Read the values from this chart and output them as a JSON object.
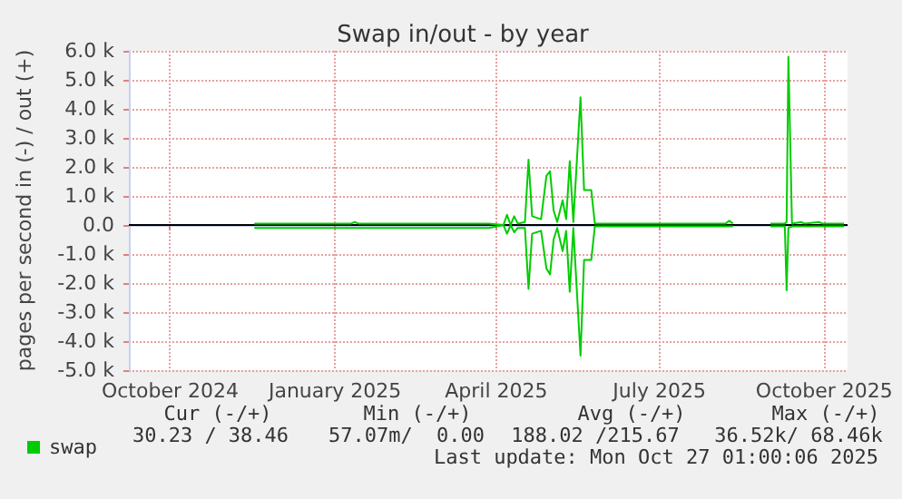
{
  "chart_data": {
    "type": "line",
    "title": "Swap in/out - by year",
    "ylabel": "pages per second in (-) / out (+)",
    "xlim": [
      "2024-09-08",
      "2025-10-14"
    ],
    "xticks": [
      {
        "value": "2024-10-01",
        "label": "October 2024"
      },
      {
        "value": "2025-01-01",
        "label": "January 2025"
      },
      {
        "value": "2025-04-01",
        "label": "April 2025"
      },
      {
        "value": "2025-07-01",
        "label": "July 2025"
      },
      {
        "value": "2025-10-01",
        "label": "October 2025"
      }
    ],
    "ylim": [
      -5000,
      6000
    ],
    "yticks": [
      {
        "value": -5000,
        "label": "-5.0 k"
      },
      {
        "value": -4000,
        "label": "-4.0 k"
      },
      {
        "value": -3000,
        "label": "-3.0 k"
      },
      {
        "value": -2000,
        "label": "-2.0 k"
      },
      {
        "value": -1000,
        "label": "-1.0 k"
      },
      {
        "value": 0,
        "label": "0.0"
      },
      {
        "value": 1000,
        "label": "1.0 k"
      },
      {
        "value": 2000,
        "label": "2.0 k"
      },
      {
        "value": 3000,
        "label": "3.0 k"
      },
      {
        "value": 4000,
        "label": "4.0 k"
      },
      {
        "value": 5000,
        "label": "5.0 k"
      },
      {
        "value": 6000,
        "label": "6.0 k"
      }
    ],
    "grid": true,
    "legend": "bottom left",
    "marker": "none",
    "line_style": "solid",
    "ref_lines": [
      {
        "axis": "y",
        "value": 0,
        "color": "#000000"
      }
    ],
    "annotations": [
      "Cur (-/+)",
      "Min (-/+)",
      "Avg (-/+)",
      "Max (-/+)",
      "30.23 / 38.46",
      "57.07m/  0.00",
      "188.02 /215.67",
      "36.52k/ 68.46k",
      "Last update: Mon Oct 27 01:00:06 2025"
    ],
    "series": [
      {
        "name": "swap",
        "color": "#00cc00",
        "x": [
          "2024-11-17",
          "2025-01-10",
          "2025-01-12",
          "2025-01-14",
          "2025-03-28",
          "2025-04-05",
          "2025-04-07",
          "2025-04-09",
          "2025-04-11",
          "2025-04-13",
          "2025-04-17",
          "2025-04-19",
          "2025-04-21",
          "2025-04-26",
          "2025-04-29",
          "2025-05-01",
          "2025-05-03",
          "2025-05-05",
          "2025-05-08",
          "2025-05-10",
          "2025-05-12",
          "2025-05-14",
          "2025-05-18",
          "2025-05-20",
          "2025-05-24",
          "2025-05-26",
          "2025-08-07",
          "2025-08-09",
          "2025-08-11"
        ],
        "values": [
          50,
          50,
          100,
          50,
          50,
          0,
          350,
          0,
          300,
          50,
          100,
          2250,
          300,
          200,
          1700,
          1850,
          500,
          100,
          850,
          200,
          2200,
          100,
          4400,
          1200,
          1200,
          50,
          50,
          150,
          50
        ]
      },
      {
        "color": "#00cc00",
        "x": [
          "2025-09-01",
          "2025-09-09",
          "2025-09-10",
          "2025-09-11",
          "2025-09-13",
          "2025-09-18",
          "2025-09-20",
          "2025-09-28",
          "2025-09-30",
          "2025-10-12"
        ],
        "values": [
          50,
          50,
          100,
          5800,
          50,
          100,
          50,
          100,
          50,
          50
        ]
      },
      {
        "color": "#00cc00",
        "x": [
          "2024-11-17",
          "2025-01-10",
          "2025-01-12",
          "2025-01-14",
          "2025-03-28",
          "2025-04-05",
          "2025-04-07",
          "2025-04-09",
          "2025-04-11",
          "2025-04-13",
          "2025-04-17",
          "2025-04-19",
          "2025-04-21",
          "2025-04-26",
          "2025-04-29",
          "2025-05-01",
          "2025-05-03",
          "2025-05-05",
          "2025-05-08",
          "2025-05-10",
          "2025-05-12",
          "2025-05-14",
          "2025-05-18",
          "2025-05-20",
          "2025-05-24",
          "2025-05-26",
          "2025-08-07",
          "2025-08-09",
          "2025-08-11"
        ],
        "values": [
          -100,
          -100,
          -100,
          -100,
          -100,
          0,
          -300,
          0,
          -250,
          -100,
          -100,
          -2200,
          -300,
          -200,
          -1500,
          -1700,
          -500,
          -100,
          -900,
          -200,
          -2300,
          -100,
          -4500,
          -1200,
          -1200,
          -50,
          -50,
          -50,
          -50
        ]
      },
      {
        "color": "#00cc00",
        "x": [
          "2025-09-01",
          "2025-09-09",
          "2025-09-10",
          "2025-09-11",
          "2025-09-13",
          "2025-09-18",
          "2025-09-20",
          "2025-09-28",
          "2025-09-30",
          "2025-10-12"
        ],
        "values": [
          -50,
          -50,
          -2250,
          -100,
          -50,
          -50,
          -50,
          -50,
          -50,
          -50
        ]
      }
    ]
  }
}
